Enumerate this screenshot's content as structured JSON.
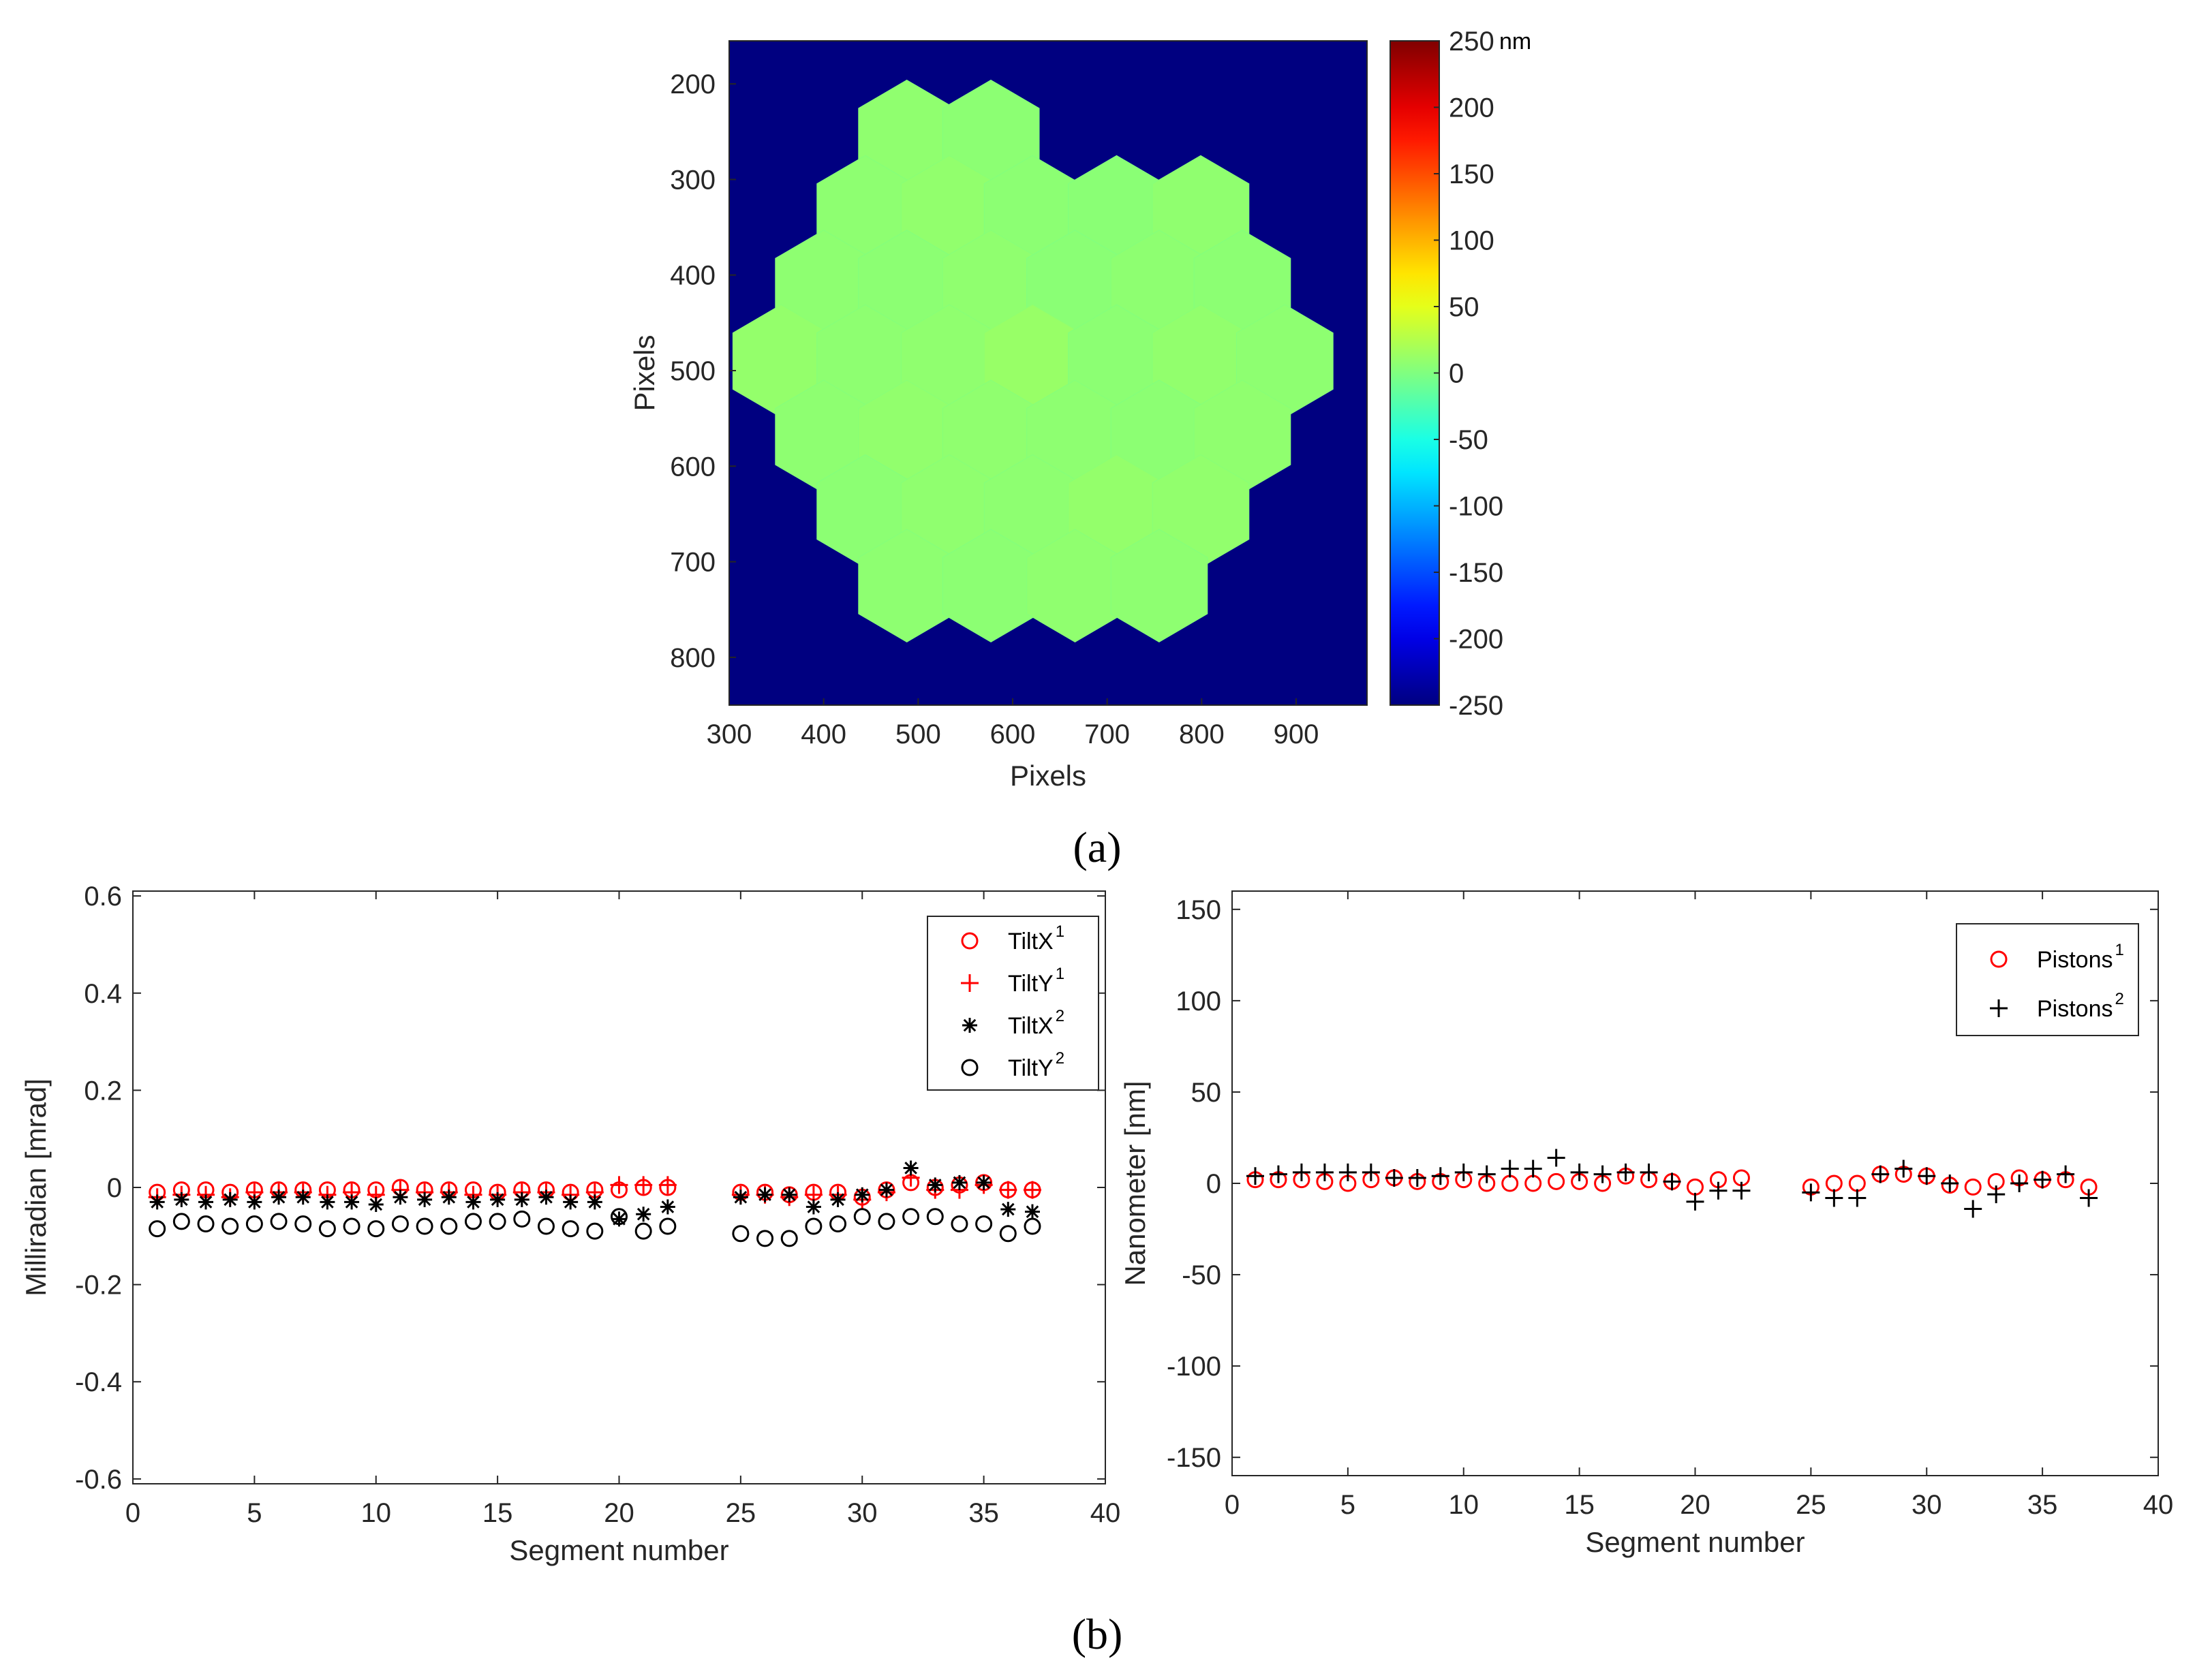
{
  "panel_labels": {
    "a": "(a)",
    "b": "(b)"
  },
  "chart_data": [
    {
      "id": "a",
      "type": "heatmap",
      "description_free": true,
      "xlabel": "Pixels",
      "ylabel": "Pixels",
      "xticks": [
        300,
        400,
        500,
        600,
        700,
        800,
        900
      ],
      "yticks": [
        200,
        300,
        400,
        500,
        600,
        700,
        800
      ],
      "xlim": [
        300,
        975
      ],
      "ylim": [
        155,
        850
      ],
      "colorbar": {
        "unit": "nm",
        "range": [
          -250,
          250
        ],
        "ticks": [
          250,
          200,
          150,
          100,
          50,
          0,
          -50,
          -100,
          -150,
          -200,
          -250
        ]
      },
      "hex_segment_centers": [
        [
          488,
          255
        ],
        [
          577,
          255
        ],
        [
          444,
          334
        ],
        [
          533,
          334
        ],
        [
          621,
          334
        ],
        [
          710,
          334
        ],
        [
          799,
          334
        ],
        [
          400,
          412
        ],
        [
          488,
          412
        ],
        [
          577,
          412
        ],
        [
          666,
          412
        ],
        [
          755,
          412
        ],
        [
          843,
          412
        ],
        [
          355,
          490
        ],
        [
          444,
          490
        ],
        [
          533,
          490
        ],
        [
          621,
          490
        ],
        [
          710,
          490
        ],
        [
          799,
          490
        ],
        [
          888,
          490
        ],
        [
          400,
          569
        ],
        [
          488,
          569
        ],
        [
          577,
          569
        ],
        [
          666,
          569
        ],
        [
          755,
          569
        ],
        [
          843,
          569
        ],
        [
          444,
          647
        ],
        [
          533,
          647
        ],
        [
          621,
          647
        ],
        [
          710,
          647
        ],
        [
          799,
          647
        ],
        [
          488,
          725
        ],
        [
          577,
          725
        ],
        [
          666,
          725
        ],
        [
          755,
          725
        ]
      ],
      "hex_segment_values_nm": [
        8,
        6,
        7,
        9,
        6,
        5,
        8,
        7,
        6,
        8,
        5,
        7,
        6,
        10,
        7,
        8,
        12,
        6,
        9,
        7,
        7,
        9,
        8,
        7,
        6,
        8,
        6,
        8,
        7,
        10,
        9,
        7,
        6,
        8,
        7
      ],
      "background_value_nm": -250
    },
    {
      "id": "b-left",
      "type": "scatter",
      "xlabel": "Segment number",
      "ylabel": "Milliradian [mrad]",
      "xlim": [
        0,
        40
      ],
      "ylim": [
        -0.61,
        0.61
      ],
      "xticks": [
        0,
        5,
        10,
        15,
        20,
        25,
        30,
        35,
        40
      ],
      "yticks": [
        0.6,
        0.4,
        0.2,
        0,
        -0.2,
        -0.4,
        -0.6
      ],
      "ytick_labels": [
        "0.6",
        "0.4",
        "0.2",
        "0",
        "-0.2",
        "-0.4",
        "-0.6"
      ],
      "legend_position": "top-right",
      "x": [
        1,
        2,
        3,
        4,
        5,
        6,
        7,
        8,
        9,
        10,
        11,
        12,
        13,
        14,
        15,
        16,
        17,
        18,
        19,
        20,
        21,
        22,
        25,
        26,
        27,
        28,
        29,
        30,
        31,
        32,
        33,
        34,
        35,
        36,
        37
      ],
      "series": [
        {
          "name": "TiltX",
          "sup": "1",
          "marker": "circle",
          "color": "#ff0000",
          "values": [
            -0.01,
            -0.005,
            -0.005,
            -0.01,
            -0.005,
            -0.005,
            -0.005,
            -0.005,
            -0.005,
            -0.005,
            0,
            -0.005,
            -0.005,
            -0.005,
            -0.01,
            -0.005,
            -0.005,
            -0.01,
            -0.005,
            -0.005,
            0,
            0,
            -0.01,
            -0.01,
            -0.015,
            -0.01,
            -0.01,
            -0.02,
            -0.005,
            0.01,
            0,
            0.005,
            0.01,
            -0.005,
            -0.005
          ]
        },
        {
          "name": "TiltY",
          "sup": "1",
          "marker": "plus",
          "color": "#ff0000",
          "values": [
            -0.02,
            -0.015,
            -0.015,
            -0.02,
            -0.01,
            -0.01,
            -0.01,
            -0.015,
            -0.01,
            -0.015,
            -0.005,
            -0.01,
            -0.01,
            -0.015,
            -0.015,
            -0.01,
            -0.01,
            -0.015,
            -0.01,
            0.005,
            0.005,
            0.005,
            -0.015,
            -0.015,
            -0.02,
            -0.015,
            -0.015,
            -0.025,
            -0.01,
            0.02,
            -0.005,
            -0.005,
            0.005,
            -0.005,
            -0.005
          ]
        },
        {
          "name": "TiltX",
          "sup": "2",
          "marker": "asterisk",
          "color": "#000000",
          "values": [
            -0.03,
            -0.025,
            -0.03,
            -0.025,
            -0.03,
            -0.02,
            -0.02,
            -0.03,
            -0.03,
            -0.035,
            -0.02,
            -0.025,
            -0.02,
            -0.03,
            -0.025,
            -0.025,
            -0.02,
            -0.03,
            -0.03,
            -0.065,
            -0.055,
            -0.04,
            -0.02,
            -0.015,
            -0.015,
            -0.04,
            -0.025,
            -0.015,
            -0.005,
            0.04,
            0.005,
            0.01,
            0.01,
            -0.045,
            -0.05
          ]
        },
        {
          "name": "TiltY",
          "sup": "2",
          "marker": "circle",
          "color": "#000000",
          "values": [
            -0.085,
            -0.07,
            -0.075,
            -0.08,
            -0.075,
            -0.07,
            -0.075,
            -0.085,
            -0.08,
            -0.085,
            -0.075,
            -0.08,
            -0.08,
            -0.07,
            -0.07,
            -0.065,
            -0.08,
            -0.085,
            -0.09,
            -0.06,
            -0.09,
            -0.08,
            -0.095,
            -0.105,
            -0.105,
            -0.08,
            -0.075,
            -0.06,
            -0.07,
            -0.06,
            -0.06,
            -0.075,
            -0.075,
            -0.095,
            -0.08
          ]
        }
      ]
    },
    {
      "id": "b-right",
      "type": "scatter",
      "xlabel": "Segment number",
      "ylabel": "Nanometer [nm]",
      "xlim": [
        0,
        40
      ],
      "ylim": [
        -160,
        160
      ],
      "xticks": [
        0,
        5,
        10,
        15,
        20,
        25,
        30,
        35,
        40
      ],
      "yticks": [
        150,
        100,
        50,
        0,
        -50,
        -100,
        -150
      ],
      "ytick_labels": [
        "150",
        "100",
        "50",
        "0",
        "-50",
        "-100",
        "-150"
      ],
      "legend_position": "top-right",
      "x": [
        1,
        2,
        3,
        4,
        5,
        6,
        7,
        8,
        9,
        10,
        11,
        12,
        13,
        14,
        15,
        16,
        17,
        18,
        19,
        20,
        21,
        22,
        25,
        26,
        27,
        28,
        29,
        30,
        31,
        32,
        33,
        34,
        35,
        36,
        37
      ],
      "series": [
        {
          "name": "Pistons",
          "sup": "1",
          "marker": "circle",
          "color": "#ff0000",
          "values": [
            2,
            2,
            2,
            1,
            0,
            2,
            3,
            1,
            1,
            2,
            0,
            0,
            0,
            1,
            1,
            0,
            4,
            2,
            1,
            -2,
            2,
            3,
            -2,
            0,
            0,
            5,
            5,
            4,
            -1,
            -2,
            1,
            3,
            2,
            2,
            -2
          ]
        },
        {
          "name": "Pistons",
          "sup": "2",
          "marker": "plus",
          "color": "#000000",
          "values": [
            4,
            5,
            6,
            6,
            6,
            6,
            3,
            3,
            4,
            6,
            5,
            8,
            8,
            14,
            6,
            5,
            6,
            6,
            1,
            -10,
            -4,
            -4,
            -5,
            -8,
            -8,
            5,
            8,
            4,
            0,
            -14,
            -6,
            0,
            2,
            5,
            -8
          ]
        }
      ]
    }
  ]
}
